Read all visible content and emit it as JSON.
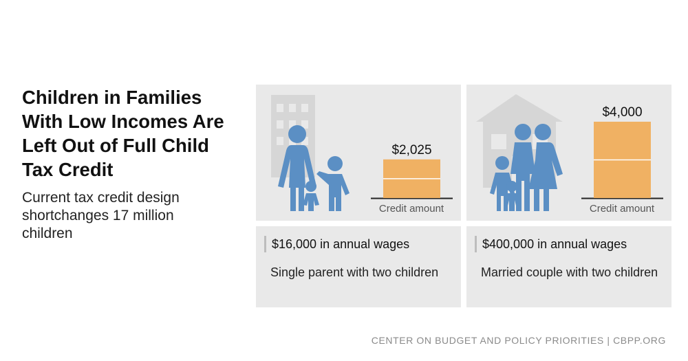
{
  "title": "Children in Families With Low Incomes Are Left Out of Full Child Tax Credit",
  "subtitle": "Current tax credit design shortchanges 17 million children",
  "footer": "CENTER ON BUDGET AND POLICY PRIORITIES | CBPP.ORG",
  "colors": {
    "bar": "#f0b163",
    "figure": "#5b8fc4",
    "background_icon": "#d6d6d6",
    "panel": "#e9e9e9"
  },
  "chart_data": {
    "type": "bar",
    "xlabel": "Credit amount",
    "categories": [
      "$16,000 in annual wages",
      "$400,000 in annual wages"
    ],
    "values": [
      2025,
      4000
    ],
    "value_labels": [
      "$2,025",
      "$4,000"
    ],
    "ylim": [
      0,
      4000
    ],
    "grid": false
  },
  "families": [
    {
      "wages": "$16,000 in annual wages",
      "household": "Single parent with two children",
      "credit_label": "$2,025",
      "axis_label": "Credit amount",
      "background_icon": "building-icon"
    },
    {
      "wages": "$400,000 in annual wages",
      "household": "Married couple with two children",
      "credit_label": "$4,000",
      "axis_label": "Credit amount",
      "background_icon": "house-icon"
    }
  ]
}
